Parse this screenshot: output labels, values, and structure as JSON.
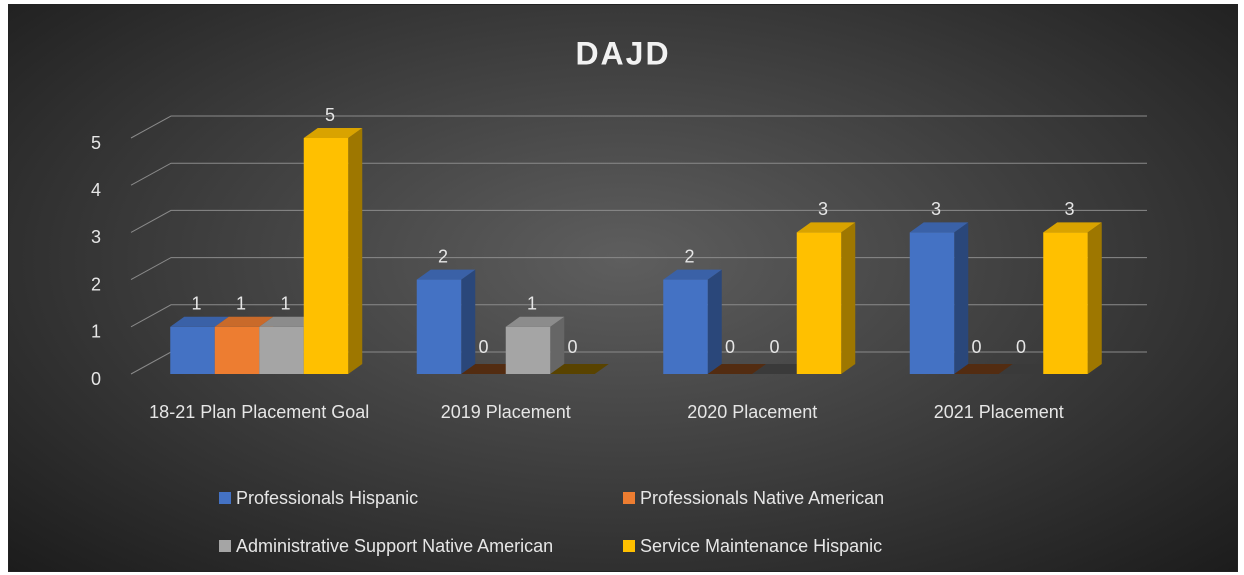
{
  "chart_data": {
    "type": "bar3d",
    "title": "DAJD",
    "categories": [
      "18-21 Plan Placement Goal",
      "2019 Placement",
      "2020 Placement",
      "2021 Placement"
    ],
    "series": [
      {
        "name": "Professionals Hispanic",
        "color": "#4472c4",
        "values": [
          1,
          2,
          2,
          3
        ]
      },
      {
        "name": "Professionals Native American",
        "color": "#ed7d31",
        "values": [
          1,
          0,
          0,
          0
        ]
      },
      {
        "name": "Administrative Support Native American",
        "color": "#a5a5a5",
        "values": [
          1,
          1,
          0,
          0
        ]
      },
      {
        "name": "Service Maintenance Hispanic",
        "color": "#ffc000",
        "values": [
          5,
          0,
          3,
          3
        ]
      }
    ],
    "ylim": [
      0,
      5
    ],
    "yticks": [
      0,
      1,
      2,
      3,
      4,
      5
    ],
    "grid": true,
    "legend": "bottom"
  }
}
